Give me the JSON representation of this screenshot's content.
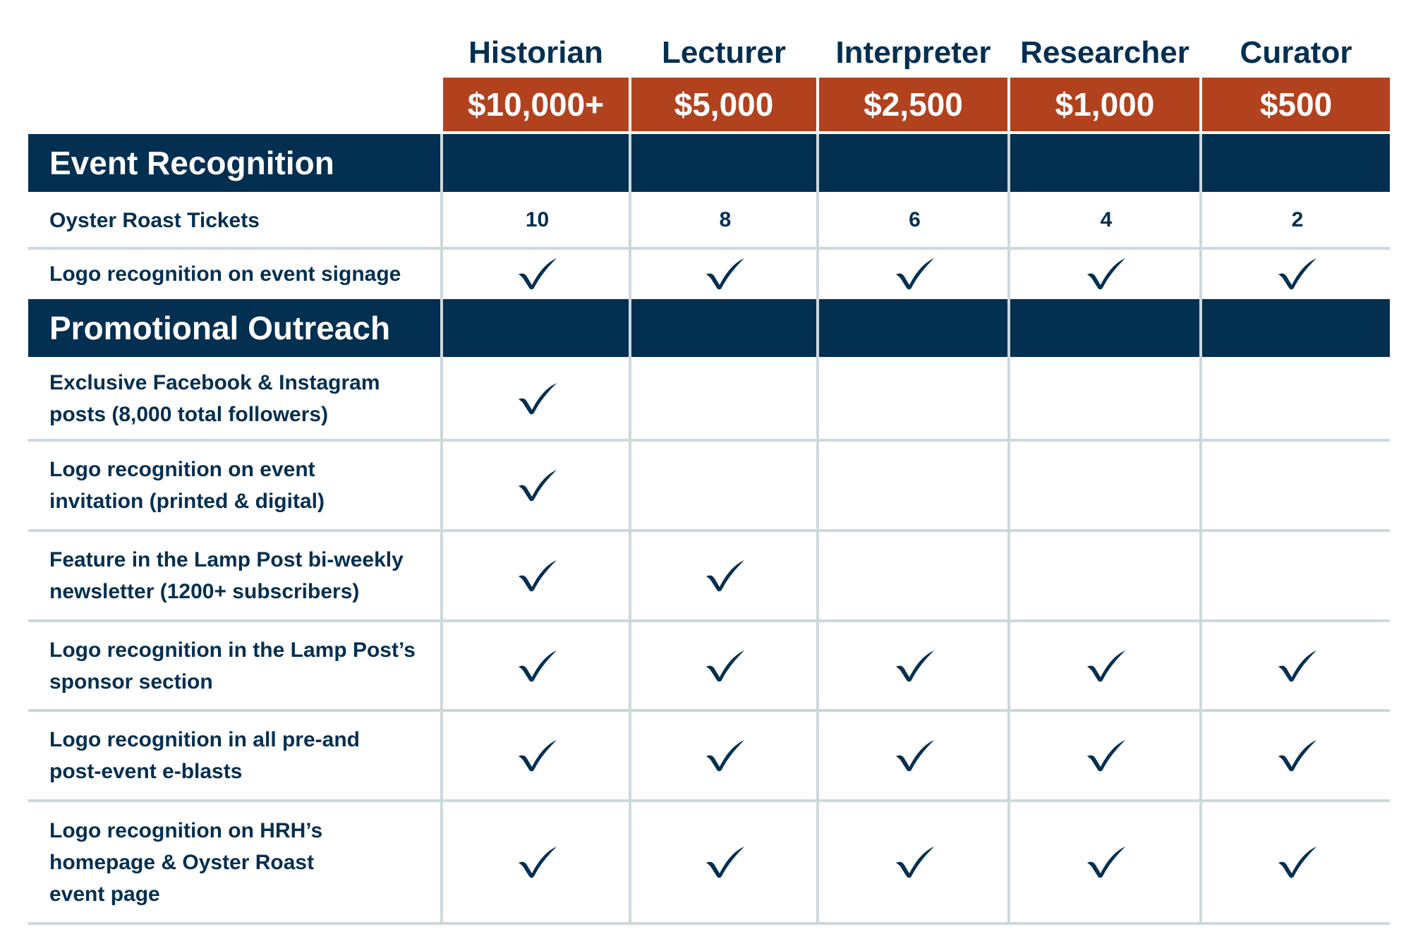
{
  "tiers": [
    {
      "name": "Historian",
      "price": "$10,000+"
    },
    {
      "name": "Lecturer",
      "price": "$5,000"
    },
    {
      "name": "Interpreter",
      "price": "$2,500"
    },
    {
      "name": "Researcher",
      "price": "$1,000"
    },
    {
      "name": "Curator",
      "price": "$500"
    }
  ],
  "sections": [
    {
      "title": "Event Recognition",
      "rows": [
        {
          "label": "Oyster Roast Tickets",
          "cells": [
            "10",
            "8",
            "6",
            "4",
            "2"
          ]
        },
        {
          "label": "Logo recognition on event signage",
          "cells": [
            true,
            true,
            true,
            true,
            true
          ]
        }
      ]
    },
    {
      "title": "Promotional Outreach",
      "rows": [
        {
          "label": "Exclusive Facebook & Instagram\nposts (8,000 total followers)",
          "cells": [
            true,
            false,
            false,
            false,
            false
          ]
        },
        {
          "label": "Logo recognition on event\ninvitation (printed & digital)",
          "cells": [
            true,
            false,
            false,
            false,
            false
          ]
        },
        {
          "label": "Feature in the Lamp Post bi-weekly\nnewsletter (1200+ subscribers)",
          "cells": [
            true,
            true,
            false,
            false,
            false
          ]
        },
        {
          "label": "Logo recognition in the Lamp Post’s\nsponsor section",
          "cells": [
            true,
            true,
            true,
            true,
            true
          ]
        },
        {
          "label": "Logo recognition in all pre-and\npost-event e-blasts",
          "cells": [
            true,
            true,
            true,
            true,
            true
          ]
        },
        {
          "label": "Logo recognition on HRH’s\nhomepage & Oyster Roast\nevent page",
          "cells": [
            true,
            true,
            true,
            true,
            true
          ]
        }
      ]
    }
  ],
  "colors": {
    "navy": "#032f51",
    "rust": "#b2411e",
    "grid": "#cdd9dc"
  },
  "icons": {
    "included": "checkmark-icon"
  }
}
